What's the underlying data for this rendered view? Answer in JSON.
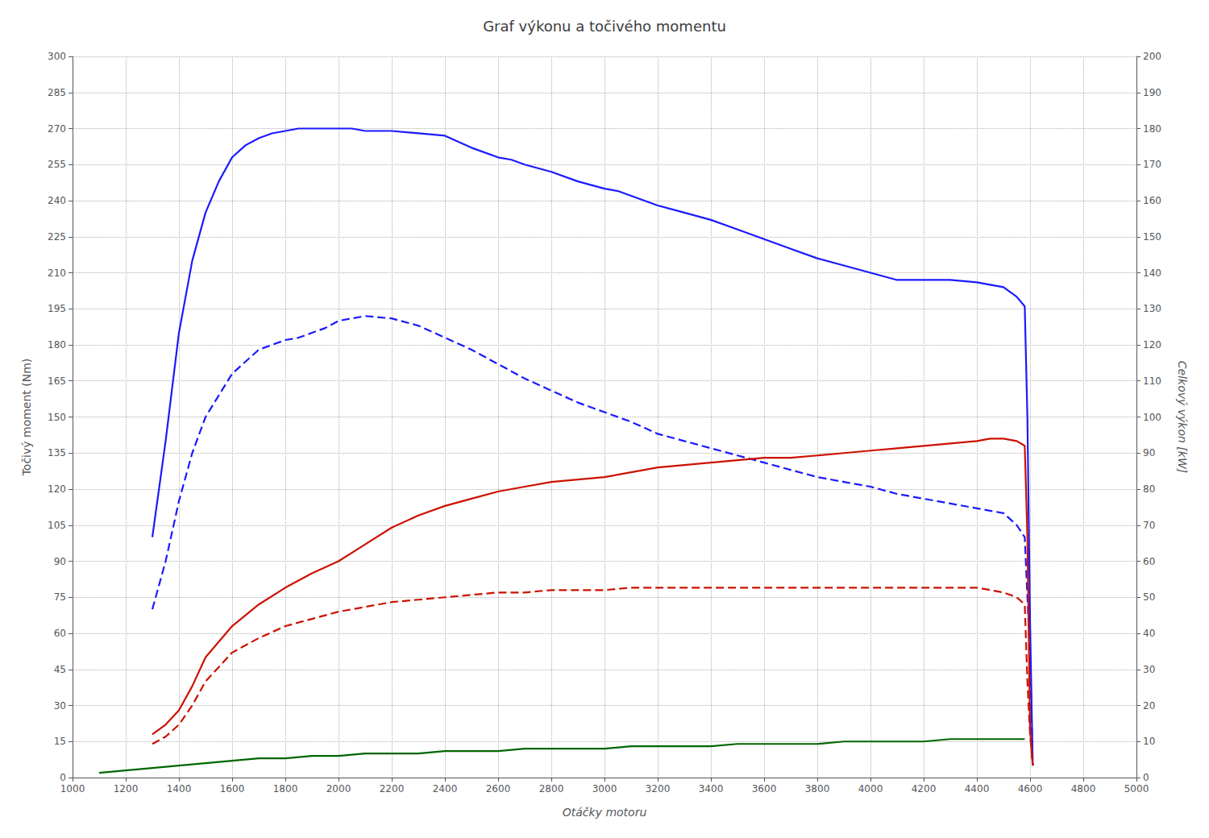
{
  "chart_data": {
    "type": "line",
    "title": "Graf výkonu a točivého momentu",
    "xlabel": "Otáčky motoru",
    "ylabel": "Točivý moment (Nm)",
    "y2label": "Celkový výkon [kW]",
    "xlim": [
      1000,
      5000
    ],
    "xticks": [
      1000,
      1200,
      1400,
      1600,
      1800,
      2000,
      2200,
      2400,
      2600,
      2800,
      3000,
      3200,
      3400,
      3600,
      3800,
      4000,
      4200,
      4400,
      4600,
      4800,
      5000
    ],
    "ylim": [
      0,
      300
    ],
    "yticks": [
      0,
      15,
      30,
      45,
      60,
      75,
      90,
      105,
      120,
      135,
      150,
      165,
      180,
      195,
      210,
      225,
      240,
      255,
      270,
      285,
      300
    ],
    "y2lim": [
      0,
      200
    ],
    "y2ticks": [
      0,
      10,
      20,
      30,
      40,
      50,
      60,
      70,
      80,
      90,
      100,
      110,
      120,
      130,
      140,
      150,
      160,
      170,
      180,
      190,
      200
    ],
    "grid": true,
    "series": [
      {
        "color": "#1a1aff",
        "line_style": "solid",
        "x": [
          1300,
          1350,
          1400,
          1450,
          1500,
          1550,
          1600,
          1650,
          1700,
          1750,
          1800,
          1850,
          1900,
          1950,
          2000,
          2050,
          2100,
          2200,
          2300,
          2400,
          2500,
          2600,
          2650,
          2700,
          2800,
          2900,
          3000,
          3050,
          3100,
          3150,
          3200,
          3300,
          3400,
          3500,
          3600,
          3700,
          3800,
          3900,
          4000,
          4100,
          4200,
          4300,
          4400,
          4450,
          4500,
          4550,
          4580,
          4590,
          4600,
          4610
        ],
        "values": [
          100,
          140,
          185,
          215,
          235,
          248,
          258,
          263,
          266,
          268,
          269,
          270,
          270,
          270,
          270,
          270,
          269,
          269,
          268,
          267,
          262,
          258,
          257,
          255,
          252,
          248,
          245,
          244,
          242,
          240,
          238,
          235,
          232,
          228,
          224,
          220,
          216,
          213,
          210,
          207,
          207,
          207,
          206,
          205,
          204,
          200,
          196,
          150,
          65,
          5
        ]
      },
      {
        "color": "#1a1aff",
        "line_style": "dashed",
        "x": [
          1300,
          1350,
          1400,
          1450,
          1500,
          1600,
          1700,
          1800,
          1850,
          1900,
          1950,
          2000,
          2100,
          2200,
          2300,
          2400,
          2500,
          2600,
          2700,
          2800,
          2900,
          3000,
          3100,
          3200,
          3300,
          3400,
          3500,
          3600,
          3700,
          3800,
          3900,
          4000,
          4100,
          4200,
          4300,
          4400,
          4500,
          4550,
          4580,
          4590,
          4600,
          4610
        ],
        "values": [
          70,
          90,
          115,
          135,
          150,
          168,
          178,
          182,
          183,
          185,
          187,
          190,
          192,
          191,
          188,
          183,
          178,
          172,
          166,
          161,
          156,
          152,
          148,
          143,
          140,
          137,
          134,
          131,
          128,
          125,
          123,
          121,
          118,
          116,
          114,
          112,
          110,
          105,
          100,
          75,
          50,
          5
        ]
      },
      {
        "color": "#cc1100",
        "line_style": "solid",
        "x": [
          1300,
          1350,
          1400,
          1450,
          1500,
          1600,
          1700,
          1800,
          1900,
          2000,
          2100,
          2200,
          2300,
          2400,
          2500,
          2600,
          2700,
          2800,
          2900,
          3000,
          3100,
          3200,
          3300,
          3400,
          3500,
          3600,
          3700,
          3800,
          3900,
          4000,
          4100,
          4200,
          4300,
          4400,
          4450,
          4500,
          4550,
          4580,
          4590,
          4600,
          4610
        ],
        "values": [
          18,
          22,
          28,
          38,
          50,
          63,
          72,
          79,
          85,
          90,
          97,
          104,
          109,
          113,
          116,
          119,
          121,
          123,
          124,
          125,
          127,
          129,
          130,
          131,
          132,
          133,
          133,
          134,
          135,
          136,
          137,
          138,
          139,
          140,
          141,
          141,
          140,
          138,
          100,
          20,
          5
        ]
      },
      {
        "color": "#cc1100",
        "line_style": "dashed",
        "x": [
          1300,
          1350,
          1400,
          1450,
          1500,
          1600,
          1700,
          1800,
          1900,
          2000,
          2100,
          2200,
          2300,
          2400,
          2500,
          2600,
          2700,
          2800,
          2900,
          3000,
          3100,
          3200,
          3300,
          3400,
          3500,
          3600,
          3700,
          3800,
          3900,
          4000,
          4100,
          4200,
          4300,
          4400,
          4500,
          4550,
          4580,
          4590,
          4600,
          4610
        ],
        "values": [
          14,
          17,
          22,
          30,
          40,
          52,
          58,
          63,
          66,
          69,
          71,
          73,
          74,
          75,
          76,
          77,
          77,
          78,
          78,
          78,
          79,
          79,
          79,
          79,
          79,
          79,
          79,
          79,
          79,
          79,
          79,
          79,
          79,
          79,
          77,
          75,
          72,
          40,
          18,
          5
        ]
      },
      {
        "color": "#006600",
        "line_style": "solid",
        "x": [
          1100,
          1200,
          1300,
          1400,
          1500,
          1600,
          1700,
          1800,
          1900,
          2000,
          2100,
          2200,
          2300,
          2400,
          2500,
          2600,
          2700,
          2800,
          2900,
          3000,
          3100,
          3200,
          3300,
          3400,
          3500,
          3600,
          3700,
          3800,
          3900,
          4000,
          4100,
          4200,
          4300,
          4400,
          4500,
          4580
        ],
        "values": [
          2,
          3,
          4,
          5,
          6,
          7,
          8,
          8,
          9,
          9,
          10,
          10,
          10,
          11,
          11,
          11,
          12,
          12,
          12,
          12,
          13,
          13,
          13,
          13,
          14,
          14,
          14,
          14,
          15,
          15,
          15,
          15,
          16,
          16,
          16,
          16
        ]
      }
    ]
  }
}
